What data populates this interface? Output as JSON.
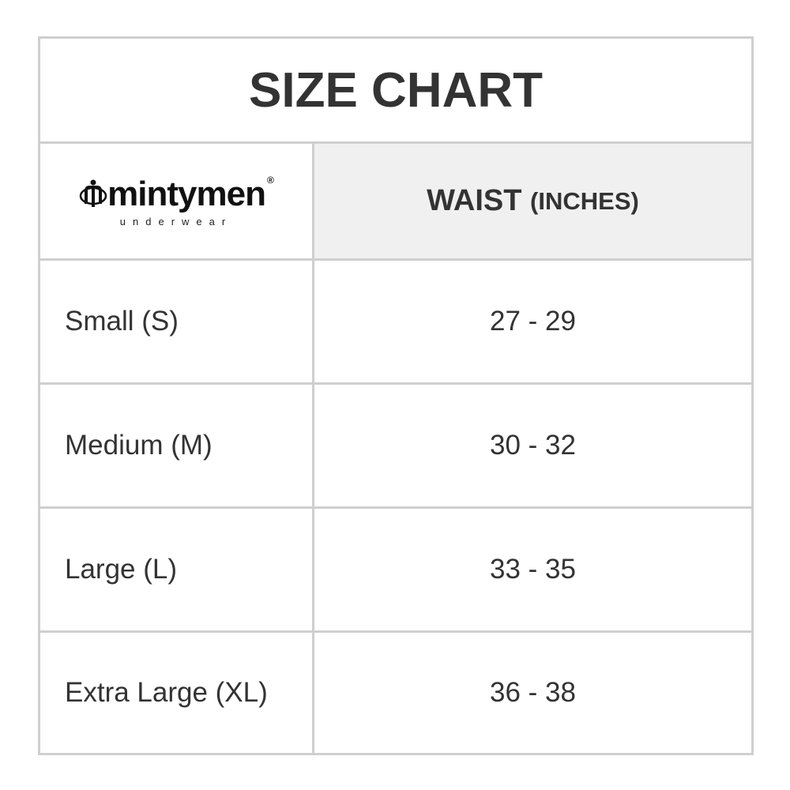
{
  "title": "SIZE CHART",
  "logo": {
    "brand": "mintymen",
    "tagline": "underwear",
    "registered": "®"
  },
  "header": {
    "measure": "WAIST",
    "unit": "(INCHES)"
  },
  "rows": [
    {
      "size": "Small (S)",
      "waist": "27 - 29"
    },
    {
      "size": "Medium (M)",
      "waist": "30 - 32"
    },
    {
      "size": "Large (L)",
      "waist": "33 - 35"
    },
    {
      "size": "Extra Large (XL)",
      "waist": "36 - 38"
    }
  ]
}
